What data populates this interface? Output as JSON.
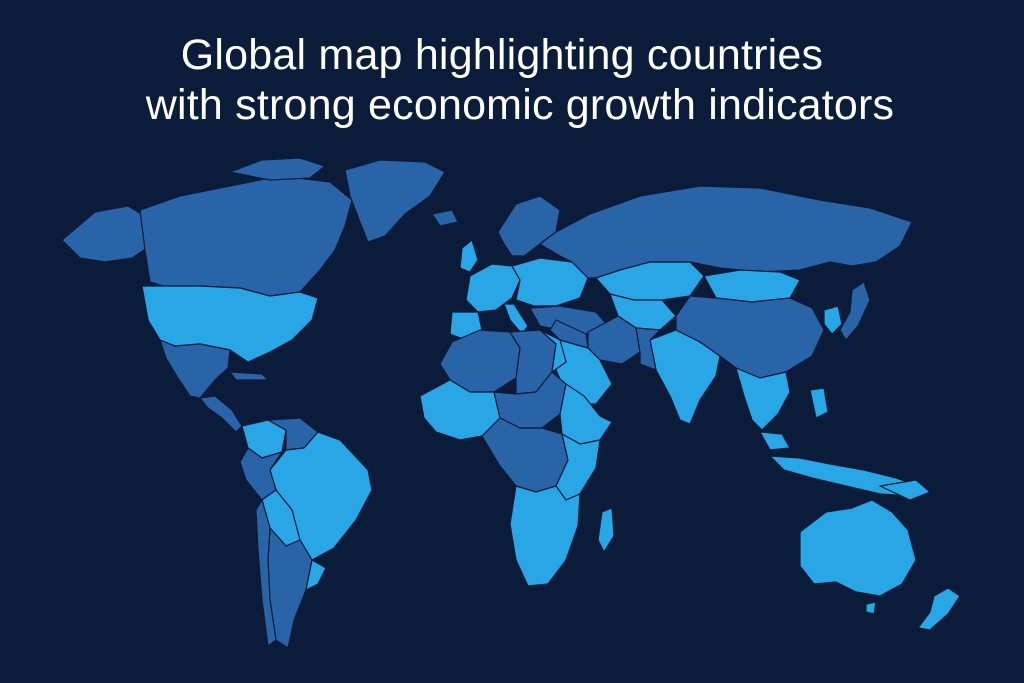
{
  "title": {
    "line_1": "Global map highlighting countries",
    "line_2": "with strong economic growth indicators"
  },
  "colors": {
    "background": "#0b1b3a",
    "highlighted_country": "#29a6e6",
    "other_country": "#2a64a8",
    "border": "#0b1b3a",
    "title_text": "#ffffff"
  },
  "map": {
    "highlighted": [
      "United States",
      "Brazil",
      "Colombia",
      "Western Europe",
      "Eastern Europe",
      "Central Asia",
      "Mongolia",
      "India",
      "Saudi Arabia",
      "Egypt",
      "East Africa",
      "Southern Africa",
      "West Africa",
      "Southeast Asia",
      "Indonesia",
      "Australia",
      "New Zealand"
    ],
    "other": [
      "Canada",
      "Greenland",
      "Mexico",
      "Argentina",
      "Russia",
      "China",
      "Iran",
      "North Africa",
      "Central Africa",
      "Japan"
    ]
  }
}
